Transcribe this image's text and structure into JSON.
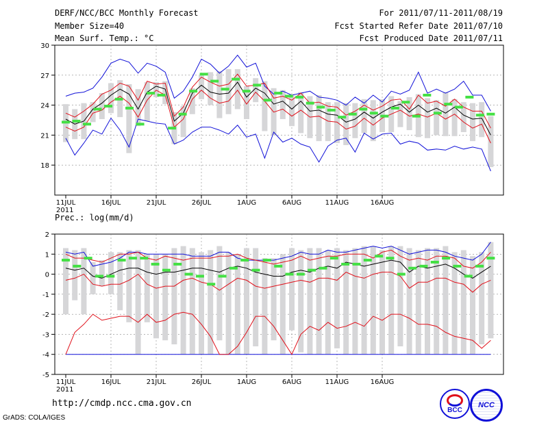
{
  "header": {
    "title": "DERF/NCC/BCC Monthly Forecast",
    "member_size": "Member Size=40",
    "variable": "Mean Surf. Temp.: °C",
    "period": "For 2011/07/11-2011/08/19",
    "started": "Fcst Started Refer Date 2011/07/10",
    "produced": "Fcst Produced Date 2011/07/11"
  },
  "footer": {
    "url": "http://cmdp.ncc.cma.gov.cn",
    "credit": "GrADS: COLA/IGES",
    "logo_bcc": "BCC",
    "logo_ncc": "NCC"
  },
  "colors": {
    "black": "#000000",
    "red": "#e0101a",
    "blue": "#1010d8",
    "green": "#44e044",
    "box": "#d6d6d8"
  },
  "chart_data": [
    {
      "type": "line",
      "title": "Mean Surf. Temp.: °C",
      "x_ticks": [
        "11JUL",
        "16JUL",
        "21JUL",
        "26JUL",
        "1AUG",
        "6AUG",
        "11AUG",
        "16AUG"
      ],
      "x_year": "2011",
      "ylim": [
        15,
        30
      ],
      "yticks": [
        18,
        21,
        24,
        27,
        30
      ],
      "grid": true,
      "series": [
        {
          "name": "mean",
          "color": "#000000",
          "values": [
            22.6,
            22.1,
            22.4,
            23.6,
            24.2,
            25.0,
            25.6,
            25.1,
            23.6,
            25.3,
            25.9,
            25.6,
            22.4,
            23.2,
            25.2,
            26.0,
            25.3,
            25.1,
            25.2,
            26.3,
            24.8,
            25.7,
            25.2,
            24.1,
            24.4,
            23.6,
            24.4,
            23.4,
            23.5,
            23.1,
            23.0,
            22.3,
            22.6,
            23.3,
            22.7,
            23.3,
            23.8,
            24.1,
            23.3,
            24.0,
            23.3,
            23.7,
            23.2,
            23.8,
            23.0,
            22.6,
            22.7,
            21.0
          ]
        },
        {
          "name": "upper",
          "color": "#e0101a",
          "values": [
            23.2,
            22.8,
            23.4,
            24.1,
            25.1,
            25.5,
            26.2,
            25.9,
            24.5,
            26.4,
            26.1,
            26.2,
            22.9,
            23.8,
            25.8,
            26.8,
            26.3,
            25.9,
            26.1,
            27.1,
            25.9,
            26.0,
            26.2,
            24.7,
            24.9,
            24.5,
            25.2,
            24.2,
            24.3,
            23.9,
            23.8,
            23.0,
            23.4,
            24.0,
            23.5,
            23.9,
            24.5,
            24.6,
            23.6,
            25.0,
            24.2,
            24.4,
            23.9,
            24.6,
            23.8,
            23.4,
            23.4,
            21.7
          ]
        },
        {
          "name": "lower",
          "color": "#e0101a",
          "values": [
            21.8,
            21.4,
            21.8,
            23.2,
            23.5,
            24.3,
            24.9,
            24.2,
            22.8,
            24.5,
            25.5,
            25.0,
            21.8,
            22.6,
            24.6,
            25.5,
            24.7,
            24.2,
            24.4,
            25.5,
            24.1,
            25.3,
            24.4,
            23.3,
            23.6,
            22.9,
            23.5,
            22.8,
            22.9,
            22.4,
            22.3,
            21.6,
            21.9,
            22.7,
            22.0,
            22.7,
            23.1,
            23.5,
            22.9,
            23.1,
            22.8,
            23.2,
            22.6,
            23.1,
            22.3,
            21.7,
            22.1,
            20.2
          ]
        },
        {
          "name": "max",
          "color": "#1010d8",
          "values": [
            24.9,
            25.2,
            25.3,
            25.7,
            26.8,
            28.2,
            28.6,
            28.3,
            27.2,
            28.2,
            27.9,
            27.3,
            24.7,
            25.4,
            26.8,
            28.6,
            28.1,
            27.2,
            27.9,
            29.0,
            27.8,
            28.2,
            25.9,
            25.1,
            25.4,
            25.0,
            25.2,
            25.4,
            24.8,
            24.7,
            24.5,
            24.0,
            24.8,
            24.2,
            25.0,
            24.3,
            25.4,
            25.1,
            25.5,
            27.3,
            25.2,
            25.6,
            25.2,
            25.6,
            26.4,
            25.0,
            25.0,
            23.4
          ]
        },
        {
          "name": "min",
          "color": "#1010d8",
          "values": [
            20.7,
            19.0,
            20.2,
            21.5,
            21.1,
            22.7,
            21.5,
            19.8,
            22.6,
            22.4,
            22.2,
            22.1,
            20.1,
            20.5,
            21.3,
            21.8,
            21.8,
            21.5,
            21.1,
            22.0,
            20.8,
            21.1,
            18.7,
            21.3,
            20.3,
            20.7,
            20.1,
            19.8,
            18.3,
            19.9,
            20.5,
            20.7,
            19.3,
            21.2,
            20.6,
            21.1,
            21.2,
            20.1,
            20.4,
            20.2,
            19.5,
            19.6,
            19.5,
            19.9,
            19.6,
            19.8,
            19.6,
            17.4
          ]
        },
        {
          "name": "box_hi",
          "color": "#d6d6d8",
          "values": [
            24.1,
            23.6,
            24.2,
            24.3,
            25.2,
            26.2,
            26.5,
            26.1,
            25.6,
            26.3,
            26.3,
            26.4,
            23.3,
            23.9,
            25.7,
            27.0,
            27.3,
            27.4,
            27.6,
            27.6,
            25.9,
            26.7,
            26.4,
            25.7,
            25.5,
            25.1,
            25.3,
            24.9,
            25.0,
            24.3,
            24.3,
            24.2,
            24.2,
            24.6,
            24.5,
            24.6,
            24.9,
            24.4,
            24.8,
            25.1,
            24.7,
            24.5,
            25.3,
            24.6,
            24.3,
            24.2,
            24.3,
            22.9
          ]
        },
        {
          "name": "box_lo",
          "color": "#d6d6d8",
          "values": [
            20.3,
            20.6,
            20.6,
            22.3,
            22.6,
            23.2,
            22.8,
            19.2,
            21.9,
            22.4,
            24.8,
            24.1,
            20.1,
            20.8,
            23.1,
            24.6,
            24.0,
            22.7,
            23.1,
            23.6,
            22.6,
            24.3,
            21.4,
            21.0,
            22.6,
            21.9,
            21.2,
            20.7,
            20.4,
            20.4,
            20.2,
            20.0,
            20.7,
            21.2,
            20.4,
            21.3,
            21.3,
            21.8,
            21.5,
            20.8,
            20.7,
            21.0,
            20.9,
            20.9,
            21.3,
            20.4,
            20.8,
            17.8
          ]
        },
        {
          "name": "obs_marker",
          "color": "#44e044",
          "values": [
            22.3,
            22.4,
            22.1,
            23.6,
            23.9,
            24.6,
            23.7,
            22.1,
            25.2,
            25.0,
            21.7,
            23.1,
            25.4,
            27.1,
            26.4,
            25.6,
            26.6,
            25.4,
            26.0,
            24.5,
            25.2,
            24.9,
            24.8,
            24.2,
            23.8,
            23.5,
            22.8,
            23.1,
            23.6,
            23.2,
            22.9,
            23.7,
            24.3,
            22.9,
            25.0,
            23.2,
            24.1,
            23.8,
            24.8,
            23.0,
            23.1
          ]
        }
      ]
    },
    {
      "type": "line",
      "title": "Prec.: log(mm/d)",
      "x_ticks": [
        "11JUL",
        "16JUL",
        "21JUL",
        "26JUL",
        "1AUG",
        "6AUG",
        "11AUG",
        "16AUG"
      ],
      "x_year": "2011",
      "ylim": [
        -5,
        2
      ],
      "yticks": [
        -5,
        -4,
        -3,
        -2,
        -1,
        0,
        1,
        2
      ],
      "grid": true,
      "series": [
        {
          "name": "mean",
          "color": "#000000",
          "values": [
            0.3,
            0.2,
            0.3,
            -0.1,
            -0.2,
            0.0,
            0.2,
            0.3,
            0.3,
            0.1,
            0.0,
            0.1,
            0.1,
            0.2,
            0.3,
            0.3,
            0.2,
            0.1,
            0.3,
            0.4,
            0.3,
            0.1,
            0.0,
            -0.1,
            -0.1,
            0.1,
            0.2,
            0.1,
            0.3,
            0.4,
            0.3,
            0.6,
            0.5,
            0.4,
            0.5,
            0.6,
            0.7,
            0.6,
            0.1,
            0.4,
            0.3,
            0.4,
            0.5,
            0.3,
            0.0,
            -0.2,
            0.1,
            0.4
          ]
        },
        {
          "name": "upper",
          "color": "#e0101a",
          "values": [
            1.0,
            0.8,
            0.8,
            0.7,
            0.6,
            0.8,
            1.0,
            1.0,
            1.1,
            0.8,
            0.7,
            0.9,
            0.8,
            0.7,
            0.8,
            0.8,
            0.8,
            0.9,
            0.9,
            1.0,
            0.8,
            0.7,
            0.6,
            0.5,
            0.6,
            0.7,
            0.9,
            0.7,
            0.8,
            0.9,
            0.9,
            1.0,
            1.0,
            1.0,
            0.8,
            1.1,
            1.2,
            0.9,
            0.7,
            0.8,
            0.7,
            0.9,
            0.9,
            0.8,
            0.4,
            0.3,
            0.6,
            1.1
          ]
        },
        {
          "name": "lower",
          "color": "#e0101a",
          "values": [
            -0.3,
            -0.2,
            0.0,
            -0.5,
            -0.6,
            -0.5,
            -0.5,
            -0.3,
            0.0,
            -0.5,
            -0.7,
            -0.6,
            -0.6,
            -0.3,
            -0.2,
            -0.4,
            -0.5,
            -0.8,
            -0.5,
            -0.2,
            -0.3,
            -0.6,
            -0.7,
            -0.6,
            -0.5,
            -0.4,
            -0.3,
            -0.4,
            -0.2,
            -0.2,
            -0.3,
            0.1,
            -0.1,
            -0.2,
            0.0,
            0.1,
            0.1,
            -0.1,
            -0.7,
            -0.4,
            -0.4,
            -0.2,
            -0.2,
            -0.4,
            -0.5,
            -0.9,
            -0.5,
            -0.3
          ]
        },
        {
          "name": "max",
          "color": "#1010d8",
          "values": [
            1.1,
            1.0,
            1.1,
            0.4,
            0.5,
            0.6,
            0.8,
            1.1,
            1.1,
            1.0,
            1.0,
            1.0,
            1.0,
            1.0,
            0.9,
            0.9,
            0.9,
            1.1,
            1.1,
            0.8,
            0.7,
            0.7,
            0.7,
            0.7,
            0.8,
            0.9,
            1.1,
            1.0,
            1.0,
            1.2,
            1.1,
            1.1,
            1.2,
            1.3,
            1.4,
            1.3,
            1.4,
            1.2,
            1.0,
            1.1,
            1.2,
            1.2,
            1.1,
            0.9,
            0.8,
            0.7,
            1.0,
            1.6
          ]
        },
        {
          "name": "min",
          "color": "#1010d8",
          "values": [
            -4.0,
            -4.0,
            -4.0,
            -4.0,
            -4.0,
            -4.0,
            -4.0,
            -4.0,
            -4.0,
            -4.0,
            -4.0,
            -4.0,
            -4.0,
            -4.0,
            -4.0,
            -4.0,
            -4.0,
            -4.0,
            -4.0,
            -4.0,
            -4.0,
            -4.0,
            -4.0,
            -4.0,
            -4.0,
            -4.0,
            -4.0,
            -4.0,
            -4.0,
            -4.0,
            -4.0,
            -4.0,
            -4.0,
            -4.0,
            -4.0,
            -4.0,
            -4.0,
            -4.0,
            -4.0,
            -4.0,
            -4.0,
            -4.0,
            -4.0,
            -4.0,
            -4.0,
            -4.0,
            -4.0,
            -4.0
          ]
        },
        {
          "name": "p10",
          "color": "#e0101a",
          "values": [
            -4.0,
            -2.9,
            -2.5,
            -2.0,
            -2.3,
            -2.2,
            -2.1,
            -2.1,
            -2.4,
            -2.0,
            -2.4,
            -2.3,
            -2.0,
            -1.9,
            -2.0,
            -2.5,
            -3.1,
            -4.0,
            -4.0,
            -3.6,
            -2.9,
            -2.1,
            -2.1,
            -2.6,
            -3.3,
            -4.0,
            -3.0,
            -2.6,
            -2.8,
            -2.4,
            -2.7,
            -2.6,
            -2.4,
            -2.6,
            -2.1,
            -2.3,
            -2.0,
            -2.0,
            -2.2,
            -2.5,
            -2.5,
            -2.6,
            -2.9,
            -3.1,
            -3.2,
            -3.3,
            -3.7,
            -3.3
          ]
        },
        {
          "name": "box_hi",
          "color": "#d6d6d8",
          "values": [
            1.3,
            1.2,
            1.3,
            0.6,
            0.7,
            1.1,
            1.1,
            1.2,
            1.2,
            1.0,
            1.0,
            1.0,
            1.3,
            1.4,
            1.3,
            1.1,
            1.2,
            1.4,
            1.1,
            1.0,
            1.3,
            1.3,
            0.8,
            0.8,
            1.0,
            1.3,
            1.2,
            1.3,
            1.3,
            1.2,
            1.3,
            1.2,
            1.3,
            1.4,
            1.4,
            1.2,
            1.4,
            1.4,
            1.3,
            1.2,
            1.3,
            1.3,
            1.4,
            1.1,
            1.2,
            0.9,
            1.1,
            1.6
          ]
        },
        {
          "name": "box_lo",
          "color": "#d6d6d8",
          "values": [
            -2.0,
            -1.3,
            -2.0,
            -1.0,
            -0.6,
            -1.0,
            -1.8,
            -2.4,
            -4.0,
            -2.4,
            -3.2,
            -3.3,
            -3.5,
            -4.0,
            -4.0,
            -4.0,
            -4.0,
            -3.3,
            -4.0,
            -4.0,
            -4.0,
            -3.6,
            -4.0,
            -3.3,
            -4.0,
            -2.8,
            -3.9,
            -4.0,
            -4.0,
            -4.0,
            -3.7,
            -4.0,
            -4.0,
            -4.0,
            -4.0,
            -4.0,
            -4.0,
            -3.6,
            -4.0,
            -4.0,
            -4.0,
            -4.0,
            -4.0,
            -4.0,
            -4.0,
            -4.0,
            -3.5,
            -3.2
          ]
        },
        {
          "name": "obs_marker",
          "color": "#44e044",
          "values": [
            0.7,
            0.4,
            0.8,
            -0.1,
            -0.1,
            0.7,
            0.8,
            0.8,
            0.5,
            0.2,
            0.5,
            0.0,
            -0.1,
            -0.5,
            -0.1,
            0.3,
            0.7,
            0.2,
            0.7,
            0.4,
            0.0,
            0.0,
            0.2,
            0.3,
            0.8,
            0.5,
            0.5,
            0.7,
            0.9,
            0.8,
            0.0,
            0.3,
            0.4,
            0.6,
            0.8,
            0.4,
            -0.1,
            0.4,
            0.8
          ]
        }
      ]
    }
  ]
}
